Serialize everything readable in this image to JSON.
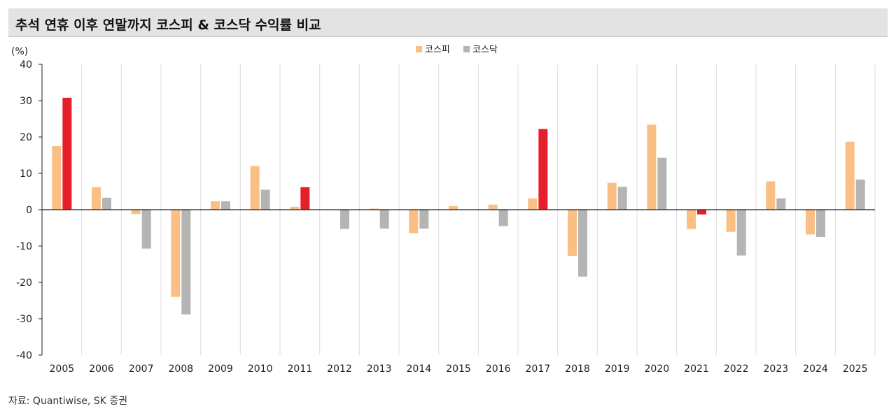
{
  "title": "추석 연휴 이후 연말까지 코스피 & 코스닥 수익률 비교",
  "source": "자료: Quantiwise, SK 증권",
  "chart_data": {
    "type": "bar",
    "unit_label": "(%)",
    "categories": [
      "2005",
      "2006",
      "2007",
      "2008",
      "2009",
      "2010",
      "2011",
      "2012",
      "2013",
      "2014",
      "2015",
      "2016",
      "2017",
      "2018",
      "2019",
      "2020",
      "2021",
      "2022",
      "2023",
      "2024",
      "2025"
    ],
    "series": [
      {
        "name": "코스피",
        "color": "#fbbf84",
        "values": [
          17.5,
          6.2,
          -1.2,
          -24.0,
          2.3,
          12.0,
          0.8,
          0.0,
          0.3,
          -6.5,
          1.0,
          1.4,
          3.1,
          -12.7,
          7.4,
          23.4,
          -5.3,
          -6.1,
          7.8,
          -6.8,
          18.7
        ]
      },
      {
        "name": "코스닥",
        "color": "#b4b4b4",
        "values": [
          30.8,
          3.3,
          -10.7,
          -28.8,
          2.3,
          5.5,
          6.2,
          -5.3,
          -5.2,
          -5.2,
          0.0,
          -4.5,
          22.2,
          -18.4,
          6.3,
          14.3,
          -1.3,
          -12.6,
          3.1,
          -7.5,
          8.3
        ]
      }
    ],
    "highlight_color": "#e5202a",
    "highlight_note": "코스닥 values for 2005, 2011, 2017, 2021 are drawn in red",
    "highlight_categories": [
      "2005",
      "2011",
      "2017",
      "2021"
    ],
    "ylim": [
      -40,
      40
    ],
    "yticks": [
      40,
      30,
      20,
      10,
      0,
      -10,
      -20,
      -30,
      -40
    ],
    "grid": "vertical",
    "legend": "top-center"
  }
}
